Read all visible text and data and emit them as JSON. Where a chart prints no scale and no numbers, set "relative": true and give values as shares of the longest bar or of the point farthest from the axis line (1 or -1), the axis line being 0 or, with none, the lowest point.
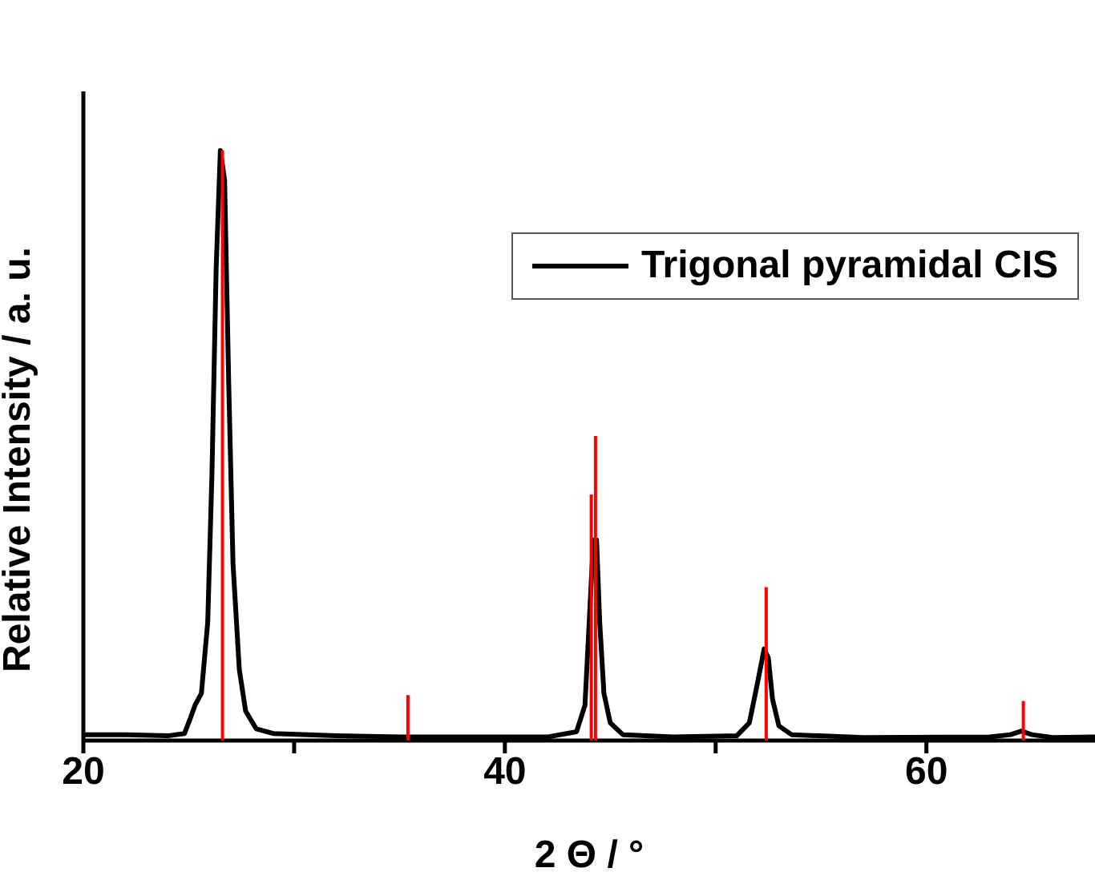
{
  "chart_data": {
    "type": "line",
    "relative": true,
    "xlabel": "2 Θ / °",
    "ylabel": "Relative Intensity / a. u.",
    "xlim": [
      20,
      68
    ],
    "xticks": [
      20,
      {
        "value": 30,
        "label": null
      },
      40,
      {
        "value": 50,
        "label": null
      },
      60
    ],
    "tick_labels": "x",
    "legend": "top right",
    "marker": "none",
    "line_style": "solid",
    "series": [
      {
        "name": "Trigonal pyramidal CIS",
        "color": "#000000",
        "x": [
          20,
          22,
          24,
          24.8,
          25.1,
          25.3,
          25.6,
          25.9,
          26.1,
          26.3,
          26.5,
          26.7,
          26.9,
          27.1,
          27.4,
          27.7,
          28.2,
          29,
          32,
          35,
          38,
          42,
          43.4,
          43.8,
          44.0,
          44.2,
          44.35,
          44.5,
          44.7,
          45,
          45.6,
          48,
          51,
          51.6,
          52.0,
          52.3,
          52.5,
          52.7,
          53,
          53.6,
          57,
          63,
          64,
          64.5,
          65,
          66,
          68
        ],
        "values": [
          0.01,
          0.01,
          0.008,
          0.012,
          0.04,
          0.06,
          0.08,
          0.2,
          0.45,
          0.8,
          1.0,
          0.95,
          0.6,
          0.3,
          0.12,
          0.05,
          0.02,
          0.012,
          0.008,
          0.006,
          0.006,
          0.006,
          0.015,
          0.06,
          0.2,
          0.34,
          0.34,
          0.2,
          0.08,
          0.03,
          0.01,
          0.006,
          0.008,
          0.03,
          0.1,
          0.155,
          0.14,
          0.07,
          0.025,
          0.01,
          0.005,
          0.006,
          0.01,
          0.016,
          0.01,
          0.005,
          0.006
        ]
      },
      {
        "type": "bar",
        "color": "#ff0000",
        "x": [
          26.6,
          35.4,
          44.1,
          44.3,
          52.4,
          64.6
        ],
        "values": [
          1.0,
          0.077,
          0.417,
          0.516,
          0.26,
          0.067
        ]
      }
    ]
  }
}
